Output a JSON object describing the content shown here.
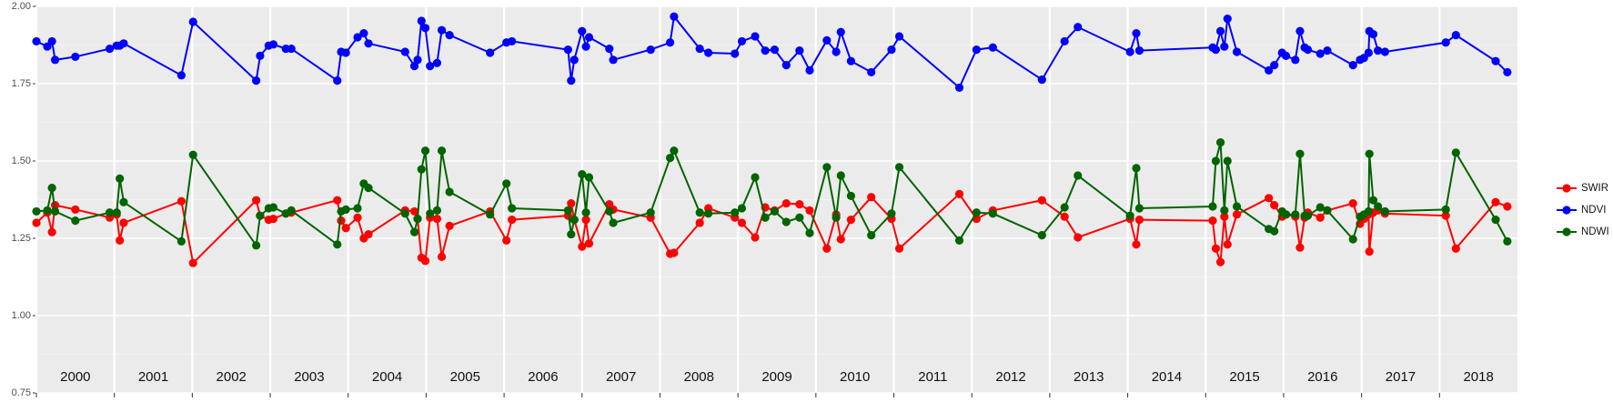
{
  "chart_data": {
    "type": "line",
    "x": [
      2000.0,
      2000.14,
      2000.2,
      2000.24,
      2000.5,
      2000.94,
      2001.03,
      2001.07,
      2001.12,
      2001.86,
      2002.01,
      2002.82,
      2002.87,
      2002.98,
      2003.04,
      2003.2,
      2003.27,
      2003.86,
      2003.91,
      2003.97,
      2004.12,
      2004.2,
      2004.26,
      2004.73,
      2004.85,
      2004.89,
      2004.94,
      2004.99,
      2005.05,
      2005.14,
      2005.2,
      2005.3,
      2005.82,
      2006.03,
      2006.1,
      2006.82,
      2006.86,
      2006.9,
      2007.0,
      2007.05,
      2007.09,
      2007.35,
      2007.4,
      2007.88,
      2008.13,
      2008.18,
      2008.51,
      2008.62,
      2008.96,
      2009.05,
      2009.22,
      2009.35,
      2009.47,
      2009.62,
      2009.79,
      2009.92,
      2010.14,
      2010.26,
      2010.32,
      2010.45,
      2010.71,
      2010.97,
      2011.07,
      2011.84,
      2012.06,
      2012.27,
      2012.9,
      2013.19,
      2013.36,
      2014.03,
      2014.11,
      2014.15,
      2015.09,
      2015.13,
      2015.19,
      2015.24,
      2015.28,
      2015.4,
      2015.81,
      2015.88,
      2015.98,
      2016.03,
      2016.15,
      2016.21,
      2016.27,
      2016.31,
      2016.47,
      2016.56,
      2016.89,
      2016.98,
      2017.03,
      2017.09,
      2017.1,
      2017.15,
      2017.21,
      2017.3,
      2018.08,
      2018.21,
      2018.72,
      2018.87
    ],
    "series": [
      {
        "name": "SWIR",
        "color": "#ff0000",
        "values": [
          1.3,
          1.333,
          1.27,
          1.357,
          1.343,
          1.317,
          1.327,
          1.243,
          1.3,
          1.37,
          1.17,
          1.373,
          1.323,
          1.31,
          1.313,
          1.33,
          1.333,
          1.373,
          1.307,
          1.283,
          1.317,
          1.25,
          1.263,
          1.34,
          1.337,
          1.313,
          1.187,
          1.177,
          1.317,
          1.313,
          1.19,
          1.29,
          1.337,
          1.243,
          1.31,
          1.323,
          1.363,
          1.31,
          1.223,
          1.31,
          1.233,
          1.36,
          1.343,
          1.317,
          1.2,
          1.203,
          1.3,
          1.347,
          1.317,
          1.3,
          1.253,
          1.35,
          1.34,
          1.363,
          1.36,
          1.34,
          1.217,
          1.327,
          1.247,
          1.31,
          1.383,
          1.313,
          1.217,
          1.393,
          1.313,
          1.34,
          1.373,
          1.32,
          1.253,
          1.313,
          1.23,
          1.31,
          1.307,
          1.217,
          1.173,
          1.32,
          1.23,
          1.327,
          1.38,
          1.357,
          1.32,
          1.327,
          1.32,
          1.22,
          1.317,
          1.333,
          1.317,
          1.34,
          1.363,
          1.297,
          1.313,
          1.327,
          1.207,
          1.333,
          1.34,
          1.33,
          1.323,
          1.217,
          1.367,
          1.353
        ]
      },
      {
        "name": "NDVI",
        "color": "#0000ff",
        "values": [
          1.887,
          1.87,
          1.887,
          1.827,
          1.837,
          1.863,
          1.873,
          1.873,
          1.88,
          1.777,
          1.95,
          1.76,
          1.84,
          1.873,
          1.877,
          1.863,
          1.863,
          1.76,
          1.853,
          1.85,
          1.9,
          1.913,
          1.88,
          1.853,
          1.807,
          1.827,
          1.953,
          1.93,
          1.807,
          1.817,
          1.923,
          1.907,
          1.85,
          1.883,
          1.887,
          1.86,
          1.76,
          1.827,
          1.92,
          1.87,
          1.9,
          1.863,
          1.827,
          1.86,
          1.883,
          1.967,
          1.863,
          1.85,
          1.847,
          1.887,
          1.903,
          1.857,
          1.86,
          1.81,
          1.857,
          1.793,
          1.89,
          1.853,
          1.917,
          1.823,
          1.787,
          1.86,
          1.903,
          1.737,
          1.86,
          1.867,
          1.763,
          1.887,
          1.933,
          1.853,
          1.913,
          1.857,
          1.867,
          1.86,
          1.92,
          1.87,
          1.96,
          1.853,
          1.793,
          1.81,
          1.85,
          1.84,
          1.827,
          1.92,
          1.867,
          1.86,
          1.847,
          1.857,
          1.81,
          1.827,
          1.833,
          1.85,
          1.92,
          1.91,
          1.857,
          1.853,
          1.883,
          1.907,
          1.823,
          1.787
        ]
      },
      {
        "name": "NDWI",
        "color": "#006400",
        "values": [
          1.337,
          1.34,
          1.413,
          1.337,
          1.307,
          1.333,
          1.333,
          1.443,
          1.367,
          1.24,
          1.52,
          1.227,
          1.323,
          1.347,
          1.35,
          1.33,
          1.34,
          1.23,
          1.337,
          1.343,
          1.347,
          1.427,
          1.413,
          1.33,
          1.27,
          1.313,
          1.473,
          1.533,
          1.33,
          1.34,
          1.533,
          1.4,
          1.327,
          1.427,
          1.347,
          1.34,
          1.263,
          1.31,
          1.457,
          1.333,
          1.447,
          1.337,
          1.3,
          1.333,
          1.51,
          1.533,
          1.333,
          1.33,
          1.333,
          1.347,
          1.447,
          1.317,
          1.337,
          1.303,
          1.317,
          1.267,
          1.48,
          1.317,
          1.453,
          1.387,
          1.26,
          1.33,
          1.48,
          1.243,
          1.333,
          1.33,
          1.26,
          1.35,
          1.453,
          1.323,
          1.477,
          1.347,
          1.353,
          1.5,
          1.56,
          1.34,
          1.5,
          1.353,
          1.28,
          1.273,
          1.337,
          1.327,
          1.327,
          1.523,
          1.323,
          1.323,
          1.35,
          1.34,
          1.247,
          1.32,
          1.327,
          1.337,
          1.523,
          1.373,
          1.353,
          1.337,
          1.343,
          1.527,
          1.31,
          1.24
        ]
      }
    ],
    "xlim": [
      2000,
      2019
    ],
    "xticks": [
      2000,
      2001,
      2002,
      2003,
      2004,
      2005,
      2006,
      2007,
      2008,
      2009,
      2010,
      2011,
      2012,
      2013,
      2014,
      2015,
      2016,
      2017,
      2018
    ],
    "ylim": [
      0.75,
      2
    ],
    "yticks": [
      0.75,
      {
        "value": 1,
        "label": "1.00"
      },
      1.25,
      {
        "value": 1.5,
        "label": "1.50"
      },
      1.75,
      {
        "value": 2,
        "label": "2.00"
      }
    ],
    "grid": true
  }
}
